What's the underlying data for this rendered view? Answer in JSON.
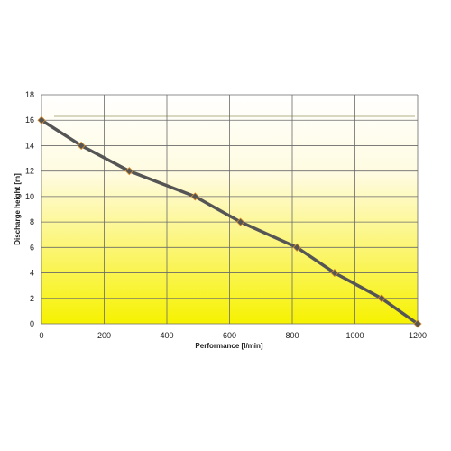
{
  "chart_data": {
    "type": "line",
    "title": "",
    "xlabel": "Performance [l/min]",
    "ylabel": "Discharge height [m]",
    "xlim": [
      0,
      1200
    ],
    "ylim": [
      0,
      18
    ],
    "x_ticks": [
      0,
      200,
      400,
      600,
      800,
      1000,
      1200
    ],
    "y_ticks": [
      0,
      2,
      4,
      6,
      8,
      10,
      12,
      14,
      16,
      18
    ],
    "grid": true,
    "legend": "none",
    "background": "yellow-gradient",
    "series": [
      {
        "color": "#555555",
        "marker": "diamond",
        "x": [
          0,
          127,
          280,
          490,
          635,
          815,
          935,
          1085,
          1200
        ],
        "y": [
          16,
          14,
          12,
          10,
          8,
          6,
          4,
          2,
          0
        ]
      }
    ],
    "colors": {
      "line": "#555555",
      "marker": "#555555",
      "marker_outline": "#d98c2a",
      "grid": "#6a6a6a",
      "gradient_top": "#ffffff",
      "gradient_bottom": "#f6f200"
    }
  }
}
